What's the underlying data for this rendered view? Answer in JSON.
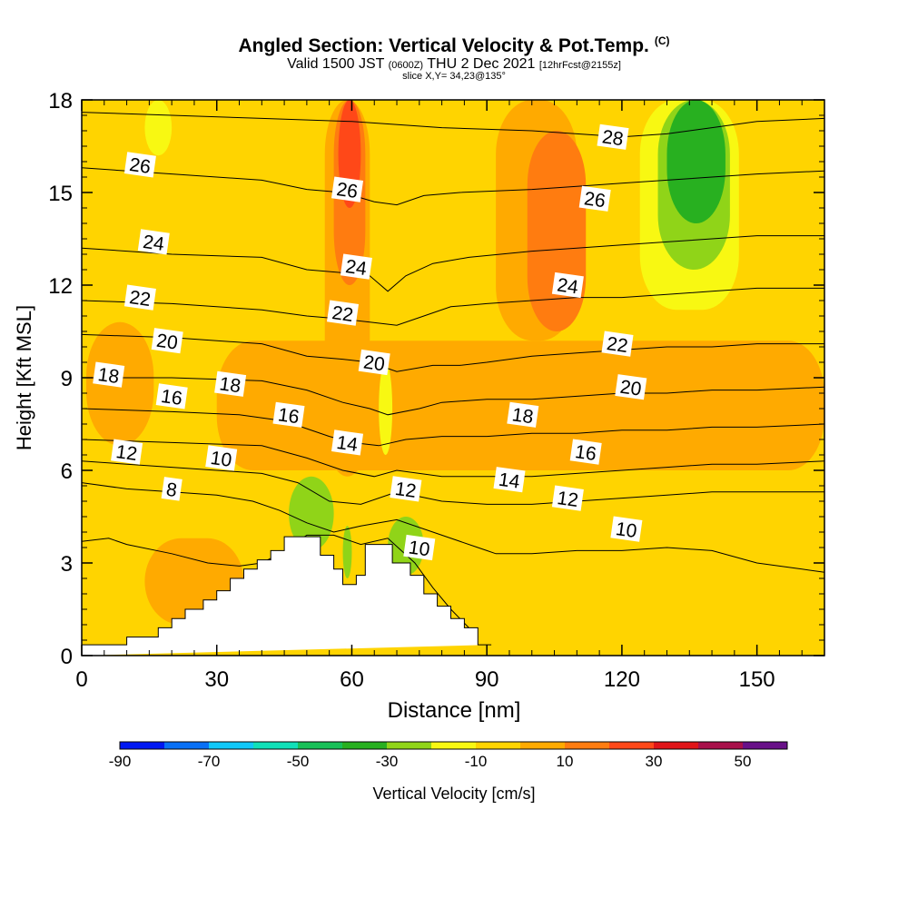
{
  "header": {
    "title": "Angled Section: Vertical Velocity & Pot.Temp.",
    "title_unit": "(C)",
    "valid_prefix": "Valid 1500 JST",
    "valid_zulu": "(0600Z)",
    "valid_date": "THU 2 Dec 2021",
    "forecast": "[12hrFcst@2155z]",
    "slice": "slice X,Y= 34,23@135°"
  },
  "chart_data": {
    "type": "heatmap",
    "title": "Angled Section: Vertical Velocity & Pot.Temp.",
    "xlabel": "Distance [nm]",
    "ylabel": "Height [Kft MSL]",
    "xlim": [
      0,
      165
    ],
    "ylim": [
      0,
      18
    ],
    "x_ticks": [
      0,
      30,
      60,
      90,
      120,
      150
    ],
    "y_ticks": [
      0,
      3,
      6,
      9,
      12,
      15,
      18
    ],
    "terrain": {
      "x": [
        0,
        10,
        10,
        17,
        17,
        20,
        20,
        23,
        23,
        27,
        27,
        30,
        30,
        33,
        33,
        36,
        36,
        39,
        39,
        42,
        42,
        45,
        45,
        53,
        53,
        56,
        56,
        58,
        58,
        61,
        61,
        63,
        63,
        66,
        66,
        69,
        69,
        73,
        73,
        76,
        76,
        79,
        79,
        82,
        82,
        85,
        85,
        88,
        88,
        91,
        91,
        165
      ],
      "y": [
        0.35,
        0.35,
        0.6,
        0.6,
        0.9,
        0.9,
        1.2,
        1.2,
        1.5,
        1.5,
        1.8,
        1.8,
        2.1,
        2.1,
        2.5,
        2.5,
        2.8,
        2.8,
        3.1,
        3.1,
        3.4,
        3.4,
        3.85,
        3.85,
        3.25,
        3.25,
        2.8,
        2.8,
        2.3,
        2.3,
        2.6,
        2.6,
        3.6,
        3.6,
        3.6,
        3.6,
        3.0,
        3.0,
        2.6,
        2.6,
        2.0,
        2.0,
        1.6,
        1.6,
        1.2,
        1.2,
        0.9,
        0.9,
        0.35,
        0.35
      ]
    },
    "colorbar": {
      "label": "Vertical Velocity [cm/s]",
      "tick_labels": [
        -90,
        -70,
        -50,
        -30,
        -10,
        10,
        30,
        50
      ],
      "colors": [
        "#0018f2",
        "#0870f5",
        "#10c8f8",
        "#10e0b8",
        "#18c058",
        "#28b020",
        "#90d418",
        "#f8f812",
        "#ffd400",
        "#ffaa00",
        "#ff7c10",
        "#ff4818",
        "#e01418",
        "#a8104a",
        "#681088"
      ]
    },
    "velocity_regions": [
      {
        "x": 0,
        "x2": 165,
        "y": 0,
        "y2": 18,
        "value": -5
      },
      {
        "x": 1,
        "x2": 38,
        "y": 10,
        "y2": 18,
        "value": -10
      },
      {
        "x": 88,
        "x2": 165,
        "y": 0.5,
        "y2": 3.4,
        "value": -5
      },
      {
        "x": 14,
        "x2": 36,
        "y": 1.0,
        "y2": 3.8,
        "value": 5
      },
      {
        "x": 1,
        "x2": 16,
        "y": 6.8,
        "y2": 10.8,
        "value": 5
      },
      {
        "x": 30,
        "x2": 165,
        "y": 6.0,
        "y2": 10.2,
        "value": 5
      },
      {
        "x": 54,
        "x2": 64,
        "y": 5.8,
        "y2": 18,
        "value": 5
      },
      {
        "x": 92,
        "x2": 110,
        "y": 10.2,
        "y2": 18,
        "value": 5
      },
      {
        "x": 99,
        "x2": 112,
        "y": 10.5,
        "y2": 17,
        "value": 10
      },
      {
        "x": 56,
        "x2": 63,
        "y": 12,
        "y2": 18,
        "value": 15
      },
      {
        "x": 57,
        "x2": 62,
        "y": 14.5,
        "y2": 18,
        "value": 25
      },
      {
        "x": 124,
        "x2": 146,
        "y": 11.2,
        "y2": 18,
        "value": -20
      },
      {
        "x": 128,
        "x2": 144,
        "y": 12.5,
        "y2": 18,
        "value": -30
      },
      {
        "x": 130,
        "x2": 143,
        "y": 14,
        "y2": 18,
        "value": -40
      },
      {
        "x": 14,
        "x2": 20,
        "y": 16.2,
        "y2": 18,
        "value": -20
      },
      {
        "x": 66,
        "x2": 69,
        "y": 6.5,
        "y2": 9.5,
        "value": -20
      },
      {
        "x": 46,
        "x2": 56,
        "y": 3.4,
        "y2": 5.8,
        "value": -30
      },
      {
        "x": 58,
        "x2": 60,
        "y": 2.5,
        "y2": 4.2,
        "value": -30
      },
      {
        "x": 68,
        "x2": 76,
        "y": 2.6,
        "y2": 4.5,
        "value": -30
      }
    ],
    "isentropes": [
      {
        "label": "8",
        "x": [
          0,
          6,
          10,
          20,
          28,
          35,
          40,
          44,
          50,
          56,
          62,
          68,
          74,
          78,
          82,
          86,
          88
        ],
        "y": [
          3.7,
          3.8,
          3.6,
          3.3,
          3.0,
          2.9,
          3.0,
          3.3,
          3.9,
          3.9,
          3.6,
          3.8,
          3.0,
          2.2,
          1.5,
          0.9,
          0.6
        ]
      },
      {
        "label": "10",
        "x": [
          0,
          10,
          20,
          30,
          38,
          44,
          50,
          56,
          62,
          70,
          80,
          88,
          90,
          92,
          100,
          110,
          120,
          130,
          140,
          150,
          160,
          165
        ],
        "y": [
          5.6,
          5.4,
          5.3,
          5.2,
          5.0,
          4.7,
          4.3,
          4.0,
          4.2,
          4.4,
          3.9,
          3.5,
          3.4,
          3.3,
          3.3,
          3.4,
          3.4,
          3.5,
          3.4,
          3.0,
          2.8,
          2.7
        ]
      },
      {
        "label": "12",
        "x": [
          0,
          20,
          40,
          48,
          55,
          62,
          70,
          80,
          90,
          100,
          110,
          120,
          130,
          140,
          150,
          165
        ],
        "y": [
          6.3,
          6.1,
          5.9,
          5.6,
          5.0,
          4.9,
          5.3,
          5.0,
          4.9,
          4.9,
          5.0,
          5.1,
          5.2,
          5.3,
          5.3,
          5.3
        ]
      },
      {
        "label": "14",
        "x": [
          0,
          20,
          40,
          50,
          58,
          65,
          70,
          80,
          90,
          100,
          110,
          120,
          130,
          140,
          150,
          165
        ],
        "y": [
          7.0,
          6.9,
          6.8,
          6.4,
          6.0,
          5.8,
          6.0,
          5.8,
          5.8,
          5.8,
          5.9,
          6.0,
          6.1,
          6.2,
          6.2,
          6.3
        ]
      },
      {
        "label": "16",
        "x": [
          0,
          20,
          35,
          45,
          55,
          60,
          66,
          72,
          80,
          90,
          100,
          110,
          120,
          130,
          140,
          150,
          165
        ],
        "y": [
          8.0,
          7.9,
          7.8,
          7.6,
          7.1,
          6.9,
          6.8,
          7.0,
          7.1,
          7.1,
          7.2,
          7.2,
          7.3,
          7.3,
          7.4,
          7.4,
          7.5
        ]
      },
      {
        "label": "18",
        "x": [
          0,
          20,
          40,
          50,
          58,
          64,
          68,
          75,
          80,
          90,
          100,
          110,
          120,
          130,
          140,
          150,
          165
        ],
        "y": [
          9.0,
          9.0,
          8.9,
          8.6,
          8.2,
          8.0,
          7.8,
          8.0,
          8.2,
          8.3,
          8.3,
          8.4,
          8.5,
          8.5,
          8.6,
          8.6,
          8.7
        ]
      },
      {
        "label": "20",
        "x": [
          0,
          20,
          40,
          50,
          58,
          64,
          70,
          78,
          84,
          90,
          100,
          110,
          120,
          130,
          140,
          150,
          165
        ],
        "y": [
          10.4,
          10.3,
          10.1,
          9.7,
          9.6,
          9.5,
          9.2,
          9.4,
          9.4,
          9.5,
          9.7,
          9.8,
          9.9,
          10.0,
          10.0,
          10.1,
          10.1
        ]
      },
      {
        "label": "22",
        "x": [
          0,
          20,
          40,
          50,
          58,
          64,
          70,
          76,
          82,
          90,
          100,
          110,
          120,
          130,
          140,
          150,
          165
        ],
        "y": [
          11.5,
          11.4,
          11.2,
          11.0,
          10.9,
          10.8,
          10.7,
          11.0,
          11.3,
          11.4,
          11.5,
          11.6,
          11.6,
          11.7,
          11.8,
          11.9,
          11.9
        ]
      },
      {
        "label": "24",
        "x": [
          0,
          20,
          40,
          50,
          58,
          64,
          68,
          72,
          78,
          86,
          100,
          110,
          120,
          130,
          140,
          150,
          165
        ],
        "y": [
          13.2,
          13.0,
          12.9,
          12.5,
          12.4,
          12.3,
          11.8,
          12.3,
          12.7,
          12.9,
          13.1,
          13.2,
          13.3,
          13.4,
          13.5,
          13.6,
          13.6
        ]
      },
      {
        "label": "26",
        "x": [
          0,
          20,
          40,
          50,
          58,
          65,
          70,
          76,
          84,
          100,
          110,
          120,
          130,
          140,
          150,
          165
        ],
        "y": [
          15.8,
          15.6,
          15.4,
          15.1,
          15.0,
          14.7,
          14.6,
          14.9,
          15.0,
          15.1,
          15.2,
          15.3,
          15.4,
          15.5,
          15.6,
          15.7
        ]
      },
      {
        "label": "28",
        "x": [
          0,
          20,
          40,
          60,
          80,
          100,
          110,
          120,
          130,
          140,
          150,
          165
        ],
        "y": [
          17.6,
          17.5,
          17.4,
          17.3,
          17.1,
          17.0,
          16.9,
          16.8,
          16.9,
          17.1,
          17.3,
          17.4
        ]
      }
    ],
    "contour_labels": [
      {
        "text": "26",
        "x": 13,
        "y": 15.9
      },
      {
        "text": "24",
        "x": 16,
        "y": 13.4
      },
      {
        "text": "22",
        "x": 13,
        "y": 11.6
      },
      {
        "text": "20",
        "x": 19,
        "y": 10.2
      },
      {
        "text": "18",
        "x": 6,
        "y": 9.1
      },
      {
        "text": "16",
        "x": 20,
        "y": 8.4
      },
      {
        "text": "18",
        "x": 33,
        "y": 8.8
      },
      {
        "text": "12",
        "x": 10,
        "y": 6.6
      },
      {
        "text": "10",
        "x": 31,
        "y": 6.4
      },
      {
        "text": "8",
        "x": 20,
        "y": 5.4
      },
      {
        "text": "16",
        "x": 46,
        "y": 7.8
      },
      {
        "text": "26",
        "x": 59,
        "y": 15.1
      },
      {
        "text": "24",
        "x": 61,
        "y": 12.6
      },
      {
        "text": "22",
        "x": 58,
        "y": 11.1
      },
      {
        "text": "20",
        "x": 65,
        "y": 9.5
      },
      {
        "text": "14",
        "x": 59,
        "y": 6.9
      },
      {
        "text": "12",
        "x": 72,
        "y": 5.4
      },
      {
        "text": "10",
        "x": 75,
        "y": 3.5
      },
      {
        "text": "28",
        "x": 118,
        "y": 16.8
      },
      {
        "text": "26",
        "x": 114,
        "y": 14.8
      },
      {
        "text": "24",
        "x": 108,
        "y": 12.0
      },
      {
        "text": "22",
        "x": 119,
        "y": 10.1
      },
      {
        "text": "20",
        "x": 122,
        "y": 8.7
      },
      {
        "text": "18",
        "x": 98,
        "y": 7.8
      },
      {
        "text": "16",
        "x": 112,
        "y": 6.6
      },
      {
        "text": "14",
        "x": 95,
        "y": 5.7
      },
      {
        "text": "12",
        "x": 108,
        "y": 5.1
      },
      {
        "text": "10",
        "x": 121,
        "y": 4.1
      }
    ]
  }
}
